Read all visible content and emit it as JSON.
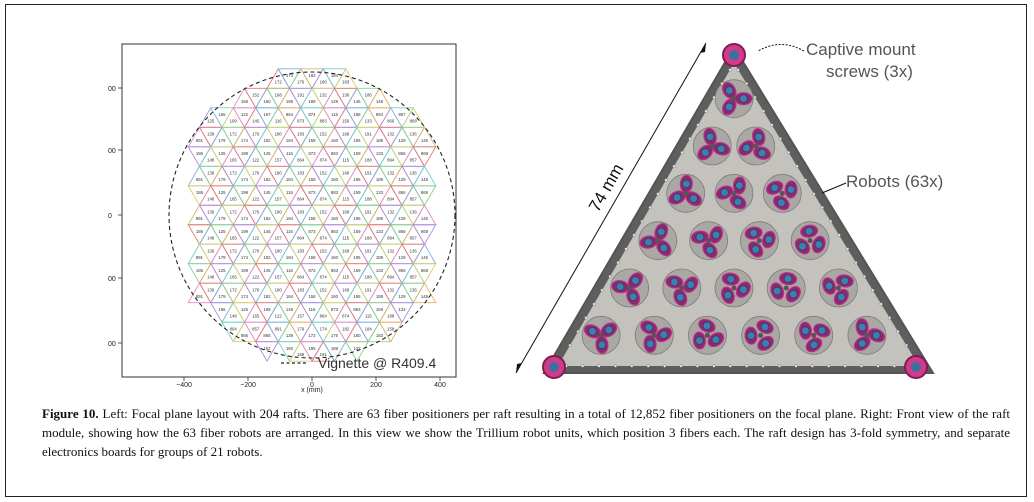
{
  "left_figure": {
    "ytick_labels": [
      "00",
      "00",
      "0",
      "00",
      "00"
    ],
    "xtick_labels": [
      "−400",
      "−200",
      "0",
      "200",
      "400"
    ],
    "xlabel": "x (mm)",
    "legend_label": "Vignette @ R409.4",
    "raft_count": 204,
    "raft_labels_sample": [
      "172",
      "174",
      "176",
      "182",
      "180",
      "184",
      "183",
      "158",
      "152",
      "160",
      "168",
      "195",
      "191",
      "189",
      "132",
      "129",
      "136",
      "146",
      "186",
      "148",
      "125",
      "165",
      "199",
      "122",
      "145",
      "157",
      "116",
      "864",
      "873",
      "874",
      "883",
      "115",
      "159",
      "188",
      "133",
      "894",
      "866",
      "857",
      "868",
      "891",
      "139",
      "179"
    ]
  },
  "right_figure": {
    "dimension_label": "74 mm",
    "annotation_screws": "Captive mount screws (3x)",
    "annotation_screws_line1": "Captive mount",
    "annotation_screws_line2": "screws (3x)",
    "annotation_robots": "Robots (63x)"
  },
  "caption": {
    "lead": "Figure 10.",
    "text": " Left: Focal plane layout with 204 rafts. There are 63 fiber positioners per raft resulting in a total of 12,852 fiber positioners on the focal plane. Right: Front view of the raft module, showing how the 63 fiber robots are arranged. In this view we show the Trillium robot units, which position 3 fibers each. The raft design has 3-fold symmetry, and separate electronics boards for groups of 21 robots."
  },
  "colors": {
    "frame": "#222222",
    "raft_palette": [
      "#e07a7a",
      "#7ab0e0",
      "#8bd08b",
      "#e0b070",
      "#b08be0",
      "#70d0c8",
      "#d6d06a",
      "#e08bc8"
    ],
    "robot_magenta": "#c0308a",
    "robot_blue": "#3f7fb0",
    "plate_gray": "#b8b8b4"
  }
}
